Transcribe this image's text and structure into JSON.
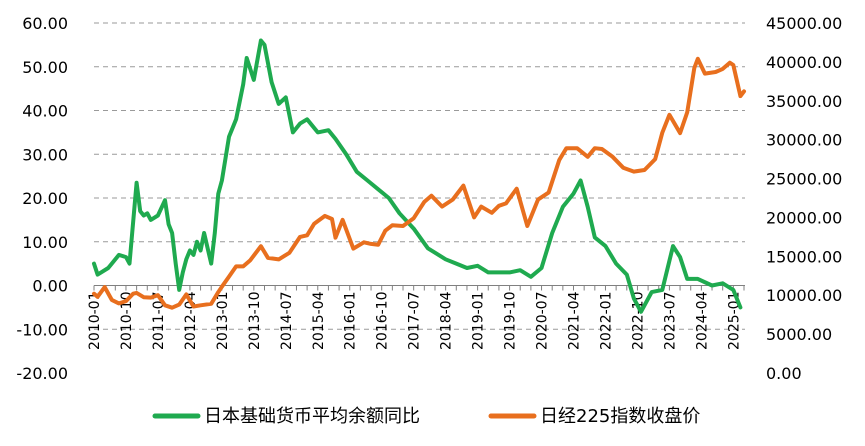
{
  "chart_data": {
    "type": "line",
    "title": "",
    "xlabel": "",
    "ylabel": "",
    "ylim": [
      -20,
      60
    ],
    "y2lim": [
      0,
      45000
    ],
    "grid": "horizontal dashed",
    "legend_position": "bottom",
    "x_tick_labels": [
      "2010-01",
      "2010-10",
      "2011-07",
      "2012-04",
      "2013-01",
      "2013-10",
      "2014-07",
      "2015-04",
      "2016-01",
      "2016-10",
      "2017-07",
      "2018-04",
      "2019-01",
      "2019-10",
      "2020-07",
      "2021-04",
      "2022-01",
      "2022-10",
      "2023-07",
      "2024-04",
      "2025-01"
    ],
    "y_left_ticks": [
      "-20.00",
      "-10.00",
      "0.00",
      "10.00",
      "20.00",
      "30.00",
      "40.00",
      "50.00",
      "60.00"
    ],
    "y_right_ticks": [
      "0.00",
      "5000.00",
      "10000.00",
      "15000.00",
      "20000.00",
      "25000.00",
      "30000.00",
      "35000.00",
      "40000.00",
      "45000.00"
    ],
    "series": [
      {
        "name": "日本基础货币平均余额同比",
        "axis": "left",
        "color": "#1faa4f",
        "x": [
          "2010-01",
          "2010-02",
          "2010-03",
          "2010-05",
          "2010-06",
          "2010-08",
          "2010-10",
          "2010-11",
          "2011-01",
          "2011-02",
          "2011-03",
          "2011-04",
          "2011-05",
          "2011-07",
          "2011-09",
          "2011-10",
          "2011-11",
          "2011-12",
          "2012-01",
          "2012-02",
          "2012-03",
          "2012-04",
          "2012-05",
          "2012-06",
          "2012-07",
          "2012-08",
          "2012-10",
          "2012-11",
          "2012-12",
          "2013-01",
          "2013-03",
          "2013-05",
          "2013-07",
          "2013-08",
          "2013-10",
          "2013-12",
          "2014-01",
          "2014-03",
          "2014-05",
          "2014-07",
          "2014-09",
          "2014-11",
          "2015-01",
          "2015-04",
          "2015-07",
          "2015-09",
          "2015-12",
          "2016-03",
          "2016-06",
          "2016-09",
          "2016-12",
          "2017-03",
          "2017-07",
          "2017-11",
          "2018-01",
          "2018-04",
          "2018-07",
          "2018-10",
          "2019-01",
          "2019-04",
          "2019-07",
          "2019-10",
          "2020-01",
          "2020-04",
          "2020-07",
          "2020-10",
          "2021-01",
          "2021-04",
          "2021-06",
          "2021-08",
          "2021-10",
          "2022-01",
          "2022-04",
          "2022-07",
          "2022-09",
          "2022-11",
          "2023-02",
          "2023-05",
          "2023-08",
          "2023-10",
          "2023-12",
          "2024-03",
          "2024-07",
          "2024-10",
          "2025-01",
          "2025-03"
        ],
        "values": [
          5.0,
          2.5,
          3.0,
          4.0,
          5.0,
          7.0,
          6.5,
          5.0,
          23.5,
          17.0,
          16.0,
          16.5,
          15.0,
          16.0,
          19.5,
          14.0,
          12.0,
          5.0,
          -1.0,
          3.0,
          6.0,
          8.0,
          7.0,
          10.0,
          8.0,
          12.0,
          5.0,
          12.0,
          21.0,
          24.0,
          34.0,
          38.0,
          46.0,
          52.0,
          47.0,
          56.0,
          55.0,
          46.5,
          41.5,
          43.0,
          35.0,
          37.0,
          38.0,
          35.0,
          35.5,
          33.5,
          30.0,
          26.0,
          24.0,
          22.0,
          20.0,
          16.5,
          13.0,
          8.5,
          7.5,
          6.0,
          5.0,
          4.0,
          4.5,
          3.0,
          3.0,
          3.0,
          3.5,
          2.0,
          4.0,
          12.0,
          18.0,
          21.0,
          24.0,
          18.0,
          11.0,
          9.0,
          5.0,
          2.5,
          -3.0,
          -6.0,
          -1.5,
          -1.0,
          9.0,
          6.5,
          1.5,
          1.5,
          0.0,
          0.5,
          -1.0,
          -5.0
        ]
      },
      {
        "name": "日经225指数收盘价",
        "axis": "right",
        "color": "#e86f1e",
        "x": [
          "2010-01",
          "2010-02",
          "2010-04",
          "2010-06",
          "2010-08",
          "2010-10",
          "2010-12",
          "2011-01",
          "2011-03",
          "2011-05",
          "2011-07",
          "2011-09",
          "2011-11",
          "2012-01",
          "2012-03",
          "2012-05",
          "2012-07",
          "2012-10",
          "2012-12",
          "2013-01",
          "2013-03",
          "2013-05",
          "2013-07",
          "2013-09",
          "2013-12",
          "2014-02",
          "2014-05",
          "2014-08",
          "2014-11",
          "2015-01",
          "2015-03",
          "2015-06",
          "2015-08",
          "2015-09",
          "2015-11",
          "2016-02",
          "2016-05",
          "2016-07",
          "2016-09",
          "2016-11",
          "2017-01",
          "2017-04",
          "2017-07",
          "2017-10",
          "2017-12",
          "2018-03",
          "2018-06",
          "2018-09",
          "2018-12",
          "2019-02",
          "2019-05",
          "2019-07",
          "2019-09",
          "2019-12",
          "2020-03",
          "2020-06",
          "2020-09",
          "2020-12",
          "2021-02",
          "2021-05",
          "2021-08",
          "2021-10",
          "2021-12",
          "2022-03",
          "2022-06",
          "2022-09",
          "2022-12",
          "2023-03",
          "2023-05",
          "2023-07",
          "2023-10",
          "2023-12",
          "2024-02",
          "2024-03",
          "2024-05",
          "2024-08",
          "2024-10",
          "2024-12",
          "2025-01",
          "2025-03",
          "2025-04"
        ],
        "values": [
          10200,
          9800,
          11050,
          9400,
          8950,
          9250,
          10200,
          10300,
          9750,
          9700,
          10000,
          8700,
          8400,
          8800,
          10100,
          8550,
          8700,
          8900,
          10400,
          11100,
          12400,
          13700,
          13700,
          14500,
          16300,
          14800,
          14600,
          15450,
          17500,
          17700,
          19200,
          20200,
          19800,
          17400,
          19700,
          16000,
          16800,
          16600,
          16500,
          18300,
          19000,
          18900,
          19900,
          22000,
          22800,
          21400,
          22300,
          24100,
          20000,
          21400,
          20600,
          21500,
          21800,
          23700,
          18900,
          22300,
          23200,
          27400,
          28900,
          28900,
          27800,
          28900,
          28800,
          27800,
          26400,
          25900,
          26100,
          27500,
          30900,
          33200,
          30850,
          33500,
          39200,
          40400,
          38500,
          38700,
          39100,
          39900,
          39600,
          35600,
          36200
        ]
      }
    ]
  },
  "legend": {
    "items": [
      {
        "label": "日本基础货币平均余额同比",
        "color": "#1faa4f"
      },
      {
        "label": "日经225指数收盘价",
        "color": "#e86f1e"
      }
    ]
  }
}
